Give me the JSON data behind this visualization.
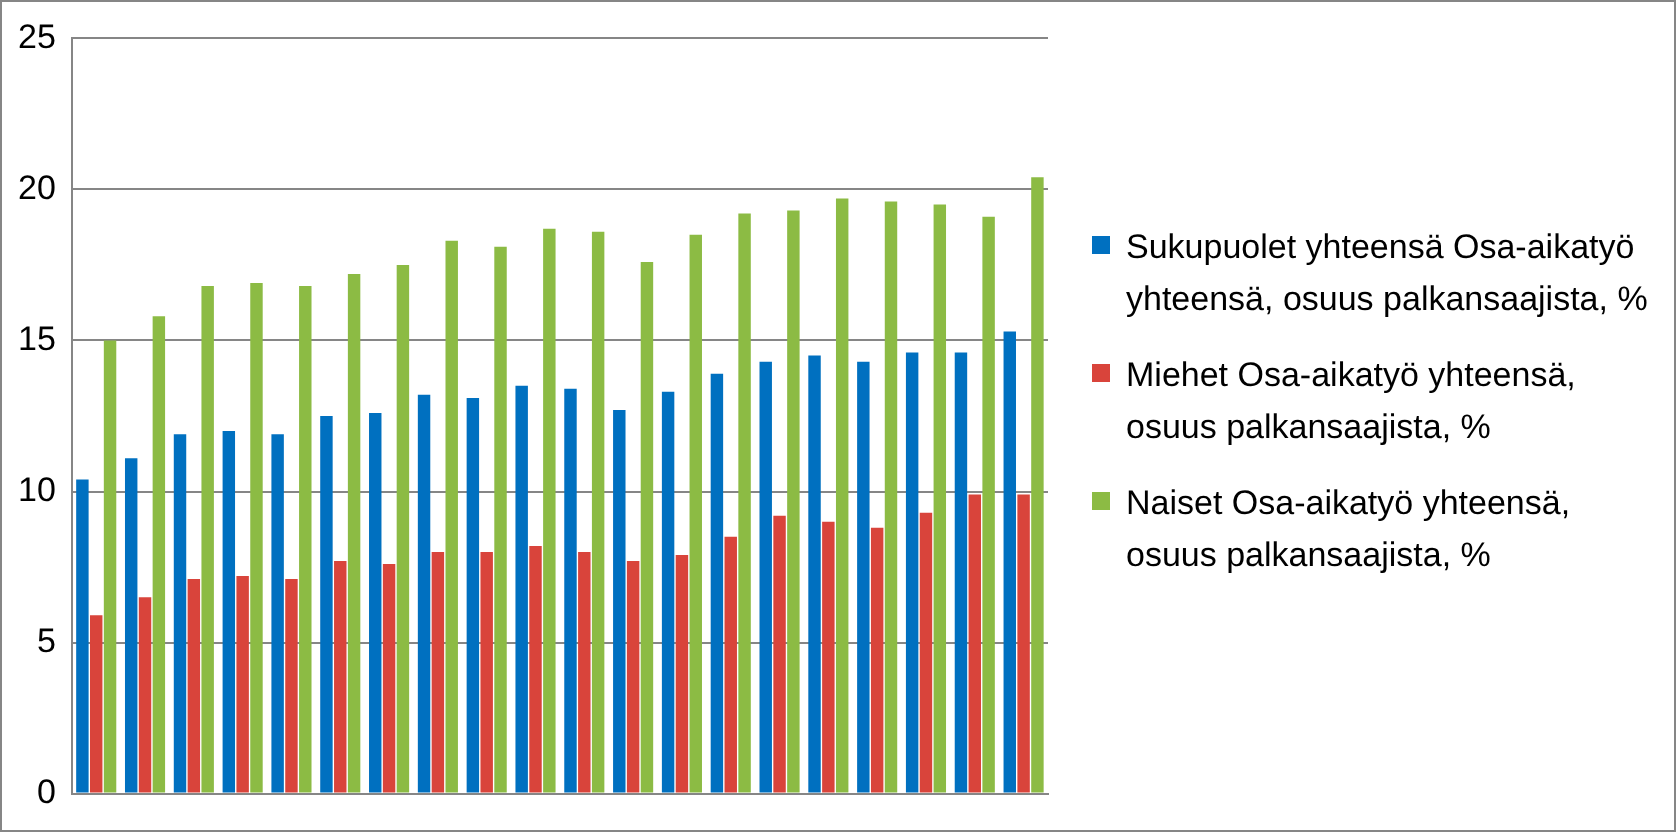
{
  "chart_data": {
    "type": "bar",
    "categories": [
      null,
      null,
      null,
      null,
      null,
      null,
      null,
      null,
      null,
      null,
      null,
      null,
      null,
      null,
      null,
      null,
      null,
      null,
      null,
      null
    ],
    "series": [
      {
        "name": "Sukupuolet yhteensä Osa-aikatyö yhteensä, osuus palkansaajista, %",
        "color": "#0070c0",
        "values": [
          10.4,
          11.1,
          11.9,
          12.0,
          11.9,
          12.5,
          12.6,
          13.2,
          13.1,
          13.5,
          13.4,
          12.7,
          13.3,
          13.9,
          14.3,
          14.5,
          14.3,
          14.6,
          14.6,
          15.3
        ]
      },
      {
        "name": "Miehet Osa-aikatyö yhteensä, osuus palkansaajista, %",
        "color": "#d9443b",
        "values": [
          5.9,
          6.5,
          7.1,
          7.2,
          7.1,
          7.7,
          7.6,
          8.0,
          8.0,
          8.2,
          8.0,
          7.7,
          7.9,
          8.5,
          9.2,
          9.0,
          8.8,
          9.3,
          9.9,
          9.9
        ]
      },
      {
        "name": "Naiset Osa-aikatyö yhteensä, osuus palkansaajista, %",
        "color": "#8cbb44",
        "values": [
          15.0,
          15.8,
          16.8,
          16.9,
          16.8,
          17.2,
          17.5,
          18.3,
          18.1,
          18.7,
          18.6,
          17.6,
          18.5,
          19.2,
          19.3,
          19.7,
          19.6,
          19.5,
          19.1,
          20.4
        ]
      }
    ],
    "ylim": [
      0,
      25
    ],
    "yticks": [
      0,
      5,
      10,
      15,
      20,
      25
    ],
    "grid": "y",
    "legend": "right"
  }
}
